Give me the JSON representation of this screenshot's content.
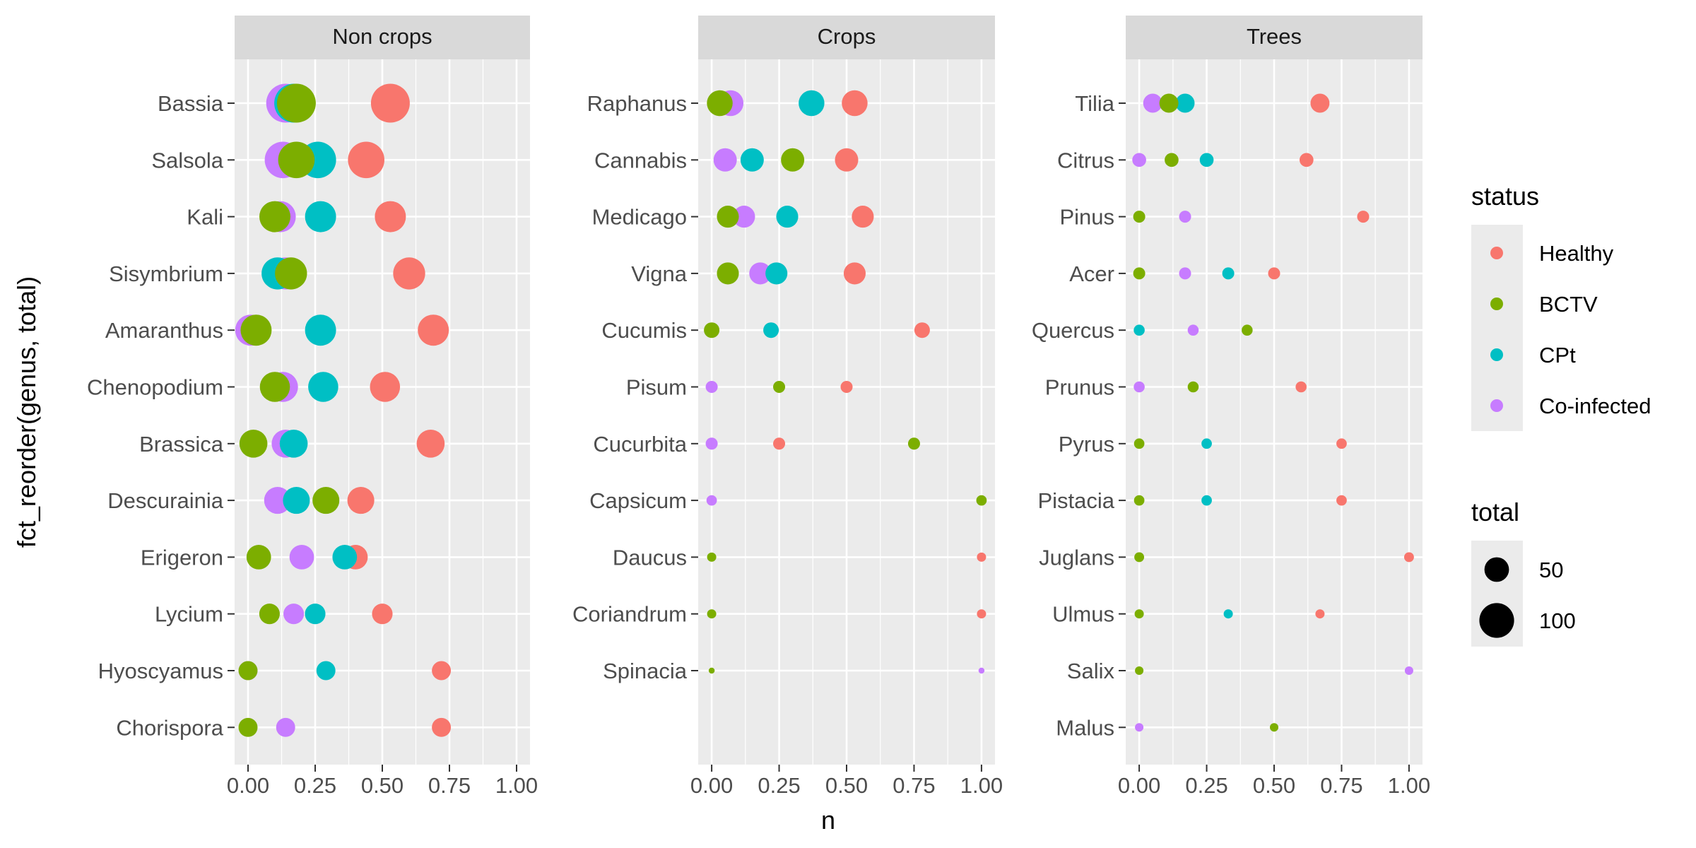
{
  "chart_data": {
    "type": "scatter",
    "xlabel": "n",
    "ylabel": "fct_reorder(genus, total)",
    "xlim": [
      -0.05,
      1.05
    ],
    "x_ticks": [
      "0.00",
      "0.25",
      "0.50",
      "0.75",
      "1.00"
    ],
    "x_tick_values": [
      0,
      0.25,
      0.5,
      0.75,
      1.0
    ],
    "grid": true,
    "legend_position": "right",
    "colors": {
      "Healthy": "#F8766D",
      "BCTV": "#7CAE00",
      "CPt": "#00BFC4",
      "Co-infected": "#C77CFF",
      "panel_bg": "#EBEBEB",
      "strip_bg": "#D9D9D9",
      "grid": "#FFFFFF"
    },
    "legend_status": {
      "title": "status",
      "entries": [
        "Healthy",
        "BCTV",
        "CPt",
        "Co-infected"
      ]
    },
    "legend_total": {
      "title": "total",
      "entries": [
        {
          "label": "50",
          "value": 50
        },
        {
          "label": "100",
          "value": 100
        }
      ]
    },
    "panels": [
      {
        "title": "Non crops",
        "genera": [
          "Bassia",
          "Salsola",
          "Kali",
          "Sisymbrium",
          "Amaranthus",
          "Chenopodium",
          "Brassica",
          "Descurainia",
          "Erigeron",
          "Lycium",
          "Hyoscyamus",
          "Chorispora"
        ],
        "points": [
          {
            "genus": "Bassia",
            "status": "Healthy",
            "n": 0.53,
            "total": 125
          },
          {
            "genus": "Bassia",
            "status": "Co-infected",
            "n": 0.14,
            "total": 125
          },
          {
            "genus": "Bassia",
            "status": "CPt",
            "n": 0.17,
            "total": 125
          },
          {
            "genus": "Bassia",
            "status": "BCTV",
            "n": 0.18,
            "total": 125
          },
          {
            "genus": "Salsola",
            "status": "Healthy",
            "n": 0.44,
            "total": 110
          },
          {
            "genus": "Salsola",
            "status": "Co-infected",
            "n": 0.13,
            "total": 110
          },
          {
            "genus": "Salsola",
            "status": "CPt",
            "n": 0.26,
            "total": 110
          },
          {
            "genus": "Salsola",
            "status": "BCTV",
            "n": 0.18,
            "total": 110
          },
          {
            "genus": "Kali",
            "status": "Healthy",
            "n": 0.53,
            "total": 80
          },
          {
            "genus": "Kali",
            "status": "Co-infected",
            "n": 0.12,
            "total": 80
          },
          {
            "genus": "Kali",
            "status": "CPt",
            "n": 0.27,
            "total": 80
          },
          {
            "genus": "Kali",
            "status": "BCTV",
            "n": 0.1,
            "total": 80
          },
          {
            "genus": "Sisymbrium",
            "status": "Healthy",
            "n": 0.6,
            "total": 85
          },
          {
            "genus": "Sisymbrium",
            "status": "Co-infected",
            "n": 0.14,
            "total": 85
          },
          {
            "genus": "Sisymbrium",
            "status": "CPt",
            "n": 0.11,
            "total": 85
          },
          {
            "genus": "Sisymbrium",
            "status": "BCTV",
            "n": 0.16,
            "total": 85
          },
          {
            "genus": "Amaranthus",
            "status": "Healthy",
            "n": 0.69,
            "total": 80
          },
          {
            "genus": "Amaranthus",
            "status": "Co-infected",
            "n": 0.01,
            "total": 80
          },
          {
            "genus": "Amaranthus",
            "status": "CPt",
            "n": 0.27,
            "total": 80
          },
          {
            "genus": "Amaranthus",
            "status": "BCTV",
            "n": 0.03,
            "total": 80
          },
          {
            "genus": "Chenopodium",
            "status": "Healthy",
            "n": 0.51,
            "total": 75
          },
          {
            "genus": "Chenopodium",
            "status": "Co-infected",
            "n": 0.13,
            "total": 75
          },
          {
            "genus": "Chenopodium",
            "status": "CPt",
            "n": 0.28,
            "total": 75
          },
          {
            "genus": "Chenopodium",
            "status": "BCTV",
            "n": 0.1,
            "total": 75
          },
          {
            "genus": "Brassica",
            "status": "Healthy",
            "n": 0.68,
            "total": 65
          },
          {
            "genus": "Brassica",
            "status": "Co-infected",
            "n": 0.14,
            "total": 65
          },
          {
            "genus": "Brassica",
            "status": "CPt",
            "n": 0.17,
            "total": 65
          },
          {
            "genus": "Brassica",
            "status": "BCTV",
            "n": 0.02,
            "total": 65
          },
          {
            "genus": "Descurainia",
            "status": "Healthy",
            "n": 0.42,
            "total": 60
          },
          {
            "genus": "Descurainia",
            "status": "Co-infected",
            "n": 0.11,
            "total": 60
          },
          {
            "genus": "Descurainia",
            "status": "CPt",
            "n": 0.18,
            "total": 60
          },
          {
            "genus": "Descurainia",
            "status": "BCTV",
            "n": 0.29,
            "total": 60
          },
          {
            "genus": "Erigeron",
            "status": "Healthy",
            "n": 0.4,
            "total": 50
          },
          {
            "genus": "Erigeron",
            "status": "Co-infected",
            "n": 0.2,
            "total": 50
          },
          {
            "genus": "Erigeron",
            "status": "CPt",
            "n": 0.36,
            "total": 50
          },
          {
            "genus": "Erigeron",
            "status": "BCTV",
            "n": 0.04,
            "total": 50
          },
          {
            "genus": "Lycium",
            "status": "Healthy",
            "n": 0.5,
            "total": 35
          },
          {
            "genus": "Lycium",
            "status": "Co-infected",
            "n": 0.17,
            "total": 35
          },
          {
            "genus": "Lycium",
            "status": "CPt",
            "n": 0.25,
            "total": 35
          },
          {
            "genus": "Lycium",
            "status": "BCTV",
            "n": 0.08,
            "total": 35
          },
          {
            "genus": "Hyoscyamus",
            "status": "Healthy",
            "n": 0.72,
            "total": 30
          },
          {
            "genus": "Hyoscyamus",
            "status": "Co-infected",
            "n": 0.0,
            "total": 30
          },
          {
            "genus": "Hyoscyamus",
            "status": "CPt",
            "n": 0.29,
            "total": 30
          },
          {
            "genus": "Hyoscyamus",
            "status": "BCTV",
            "n": 0.0,
            "total": 30
          },
          {
            "genus": "Chorispora",
            "status": "Healthy",
            "n": 0.72,
            "total": 30
          },
          {
            "genus": "Chorispora",
            "status": "Co-infected",
            "n": 0.14,
            "total": 30
          },
          {
            "genus": "Chorispora",
            "status": "BCTV",
            "n": 0.0,
            "total": 30
          }
        ]
      },
      {
        "title": "Crops",
        "genera": [
          "Raphanus",
          "Cannabis",
          "Medicago",
          "Vigna",
          "Cucumis",
          "Pisum",
          "Cucurbita",
          "Capsicum",
          "Daucus",
          "Coriandrum",
          "Spinacia"
        ],
        "points": [
          {
            "genus": "Raphanus",
            "status": "Healthy",
            "n": 0.53,
            "total": 55
          },
          {
            "genus": "Raphanus",
            "status": "Co-infected",
            "n": 0.07,
            "total": 55
          },
          {
            "genus": "Raphanus",
            "status": "CPt",
            "n": 0.37,
            "total": 55
          },
          {
            "genus": "Raphanus",
            "status": "BCTV",
            "n": 0.03,
            "total": 55
          },
          {
            "genus": "Cannabis",
            "status": "Healthy",
            "n": 0.5,
            "total": 45
          },
          {
            "genus": "Cannabis",
            "status": "Co-infected",
            "n": 0.05,
            "total": 45
          },
          {
            "genus": "Cannabis",
            "status": "CPt",
            "n": 0.15,
            "total": 45
          },
          {
            "genus": "Cannabis",
            "status": "BCTV",
            "n": 0.3,
            "total": 45
          },
          {
            "genus": "Medicago",
            "status": "Healthy",
            "n": 0.56,
            "total": 40
          },
          {
            "genus": "Medicago",
            "status": "Co-infected",
            "n": 0.12,
            "total": 40
          },
          {
            "genus": "Medicago",
            "status": "CPt",
            "n": 0.28,
            "total": 40
          },
          {
            "genus": "Medicago",
            "status": "BCTV",
            "n": 0.06,
            "total": 40
          },
          {
            "genus": "Vigna",
            "status": "Healthy",
            "n": 0.53,
            "total": 40
          },
          {
            "genus": "Vigna",
            "status": "Co-infected",
            "n": 0.18,
            "total": 40
          },
          {
            "genus": "Vigna",
            "status": "CPt",
            "n": 0.24,
            "total": 40
          },
          {
            "genus": "Vigna",
            "status": "BCTV",
            "n": 0.06,
            "total": 40
          },
          {
            "genus": "Cucumis",
            "status": "Healthy",
            "n": 0.78,
            "total": 20
          },
          {
            "genus": "Cucumis",
            "status": "CPt",
            "n": 0.22,
            "total": 20
          },
          {
            "genus": "Cucumis",
            "status": "BCTV",
            "n": 0.0,
            "total": 20
          },
          {
            "genus": "Pisum",
            "status": "Healthy",
            "n": 0.5,
            "total": 12
          },
          {
            "genus": "Pisum",
            "status": "Co-infected",
            "n": 0.0,
            "total": 12
          },
          {
            "genus": "Pisum",
            "status": "BCTV",
            "n": 0.25,
            "total": 12
          },
          {
            "genus": "Cucurbita",
            "status": "Healthy",
            "n": 0.25,
            "total": 12
          },
          {
            "genus": "Cucurbita",
            "status": "Co-infected",
            "n": 0.0,
            "total": 12
          },
          {
            "genus": "Cucurbita",
            "status": "BCTV",
            "n": 0.75,
            "total": 12
          },
          {
            "genus": "Capsicum",
            "status": "Co-infected",
            "n": 0.0,
            "total": 9
          },
          {
            "genus": "Capsicum",
            "status": "BCTV",
            "n": 1.0,
            "total": 9
          },
          {
            "genus": "Daucus",
            "status": "Healthy",
            "n": 1.0,
            "total": 7
          },
          {
            "genus": "Daucus",
            "status": "BCTV",
            "n": 0.0,
            "total": 7
          },
          {
            "genus": "Coriandrum",
            "status": "Healthy",
            "n": 1.0,
            "total": 7
          },
          {
            "genus": "Coriandrum",
            "status": "BCTV",
            "n": 0.0,
            "total": 7
          },
          {
            "genus": "Spinacia",
            "status": "Co-infected",
            "n": 1.0,
            "total": 3
          },
          {
            "genus": "Spinacia",
            "status": "BCTV",
            "n": 0.0,
            "total": 3
          }
        ]
      },
      {
        "title": "Trees",
        "genera": [
          "Tilia",
          "Citrus",
          "Pinus",
          "Acer",
          "Quercus",
          "Prunus",
          "Pyrus",
          "Pistacia",
          "Juglans",
          "Ulmus",
          "Salix",
          "Malus"
        ],
        "points": [
          {
            "genus": "Tilia",
            "status": "Healthy",
            "n": 0.67,
            "total": 30
          },
          {
            "genus": "Tilia",
            "status": "Co-infected",
            "n": 0.05,
            "total": 30
          },
          {
            "genus": "Tilia",
            "status": "CPt",
            "n": 0.17,
            "total": 30
          },
          {
            "genus": "Tilia",
            "status": "BCTV",
            "n": 0.11,
            "total": 30
          },
          {
            "genus": "Citrus",
            "status": "Healthy",
            "n": 0.62,
            "total": 16
          },
          {
            "genus": "Citrus",
            "status": "Co-infected",
            "n": 0.0,
            "total": 16
          },
          {
            "genus": "Citrus",
            "status": "CPt",
            "n": 0.25,
            "total": 16
          },
          {
            "genus": "Citrus",
            "status": "BCTV",
            "n": 0.12,
            "total": 16
          },
          {
            "genus": "Pinus",
            "status": "Healthy",
            "n": 0.83,
            "total": 12
          },
          {
            "genus": "Pinus",
            "status": "Co-infected",
            "n": 0.17,
            "total": 12
          },
          {
            "genus": "Pinus",
            "status": "BCTV",
            "n": 0.0,
            "total": 12
          },
          {
            "genus": "Acer",
            "status": "Healthy",
            "n": 0.5,
            "total": 12
          },
          {
            "genus": "Acer",
            "status": "Co-infected",
            "n": 0.17,
            "total": 12
          },
          {
            "genus": "Acer",
            "status": "CPt",
            "n": 0.33,
            "total": 12
          },
          {
            "genus": "Acer",
            "status": "BCTV",
            "n": 0.0,
            "total": 12
          },
          {
            "genus": "Quercus",
            "status": "Co-infected",
            "n": 0.2,
            "total": 10
          },
          {
            "genus": "Quercus",
            "status": "CPt",
            "n": 0.0,
            "total": 10
          },
          {
            "genus": "Quercus",
            "status": "BCTV",
            "n": 0.4,
            "total": 10
          },
          {
            "genus": "Prunus",
            "status": "Healthy",
            "n": 0.6,
            "total": 10
          },
          {
            "genus": "Prunus",
            "status": "Co-infected",
            "n": 0.0,
            "total": 10
          },
          {
            "genus": "Prunus",
            "status": "BCTV",
            "n": 0.2,
            "total": 10
          },
          {
            "genus": "Pyrus",
            "status": "Healthy",
            "n": 0.75,
            "total": 9
          },
          {
            "genus": "Pyrus",
            "status": "CPt",
            "n": 0.25,
            "total": 9
          },
          {
            "genus": "Pyrus",
            "status": "BCTV",
            "n": 0.0,
            "total": 9
          },
          {
            "genus": "Pistacia",
            "status": "Healthy",
            "n": 0.75,
            "total": 9
          },
          {
            "genus": "Pistacia",
            "status": "CPt",
            "n": 0.25,
            "total": 9
          },
          {
            "genus": "Pistacia",
            "status": "BCTV",
            "n": 0.0,
            "total": 9
          },
          {
            "genus": "Juglans",
            "status": "Healthy",
            "n": 1.0,
            "total": 8
          },
          {
            "genus": "Juglans",
            "status": "BCTV",
            "n": 0.0,
            "total": 8
          },
          {
            "genus": "Ulmus",
            "status": "Healthy",
            "n": 0.67,
            "total": 7
          },
          {
            "genus": "Ulmus",
            "status": "CPt",
            "n": 0.33,
            "total": 7
          },
          {
            "genus": "Ulmus",
            "status": "BCTV",
            "n": 0.0,
            "total": 7
          },
          {
            "genus": "Salix",
            "status": "Co-infected",
            "n": 1.0,
            "total": 6
          },
          {
            "genus": "Salix",
            "status": "BCTV",
            "n": 0.0,
            "total": 6
          },
          {
            "genus": "Malus",
            "status": "Co-infected",
            "n": 0.0,
            "total": 6
          },
          {
            "genus": "Malus",
            "status": "BCTV",
            "n": 0.5,
            "total": 6
          }
        ]
      }
    ]
  }
}
